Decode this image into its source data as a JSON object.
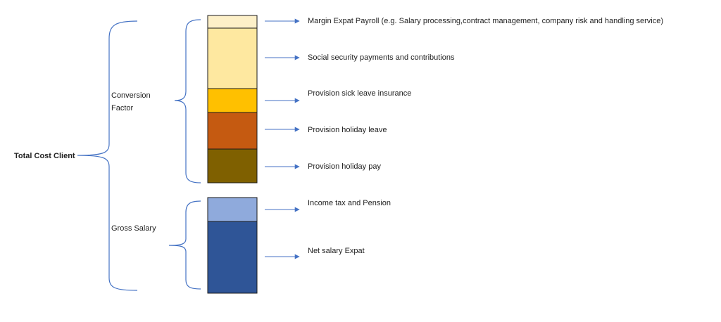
{
  "diagram": {
    "total_label": "Total Cost Client",
    "conversion_label_line1": "Conversion",
    "conversion_label_line2": "Factor",
    "gross_label": "Gross Salary",
    "segments": [
      {
        "label": "Margin Expat Payroll (e.g. Salary processing,contract management, company risk and handling service)",
        "color": "#fdf0c8"
      },
      {
        "label": "Social security payments and contributions",
        "color": "#fee8a0"
      },
      {
        "label": "Provision sick leave insurance",
        "color": "#ffc000"
      },
      {
        "label": "Provision holiday leave",
        "color": "#c55a11"
      },
      {
        "label": "Provision holiday pay",
        "color": "#7f6000"
      },
      {
        "label": "Income tax and Pension",
        "color": "#8faadc"
      },
      {
        "label": "Net salary Expat",
        "color": "#2f5597"
      }
    ]
  }
}
